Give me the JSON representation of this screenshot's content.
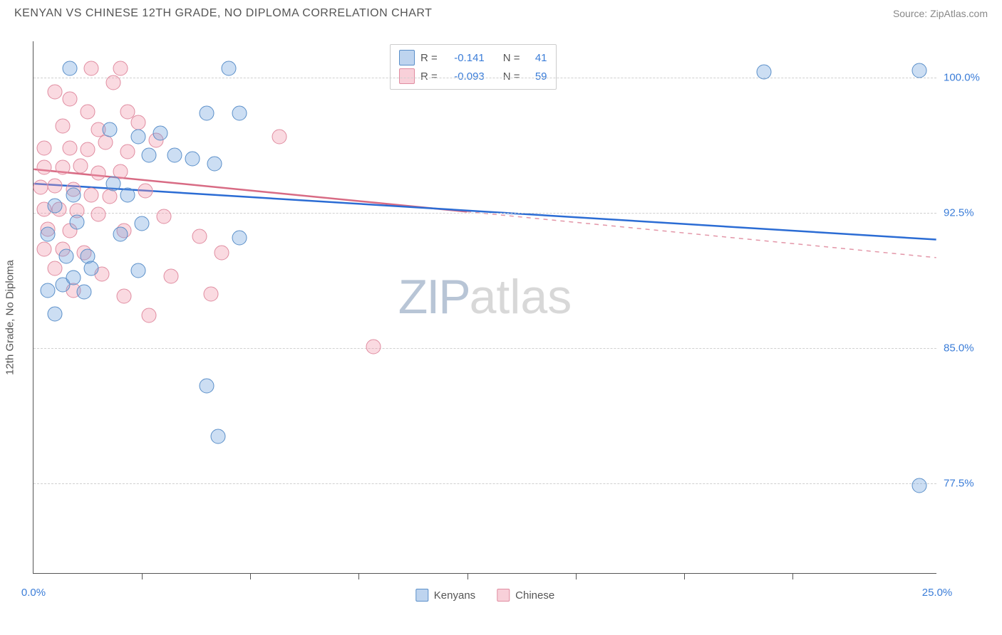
{
  "title": "KENYAN VS CHINESE 12TH GRADE, NO DIPLOMA CORRELATION CHART",
  "source": "Source: ZipAtlas.com",
  "ylabel": "12th Grade, No Diploma",
  "watermark": {
    "zip": "ZIP",
    "atlas": "atlas"
  },
  "chart": {
    "type": "scatter",
    "xlim": [
      0,
      25
    ],
    "ylim": [
      72.5,
      102.0
    ],
    "xtick_positions": [
      0,
      3,
      6,
      9,
      12,
      15,
      18,
      21,
      25
    ],
    "xtick_labels": {
      "0": "0.0%",
      "25": "25.0%"
    },
    "ytick_positions": [
      77.5,
      85.0,
      92.5,
      100.0
    ],
    "ytick_labels": [
      "77.5%",
      "85.0%",
      "92.5%",
      "100.0%"
    ],
    "gridline_color": "#d0d0d0",
    "axis_color": "#555555",
    "background_color": "#ffffff",
    "marker_size": 21
  },
  "series": {
    "kenyans": {
      "label": "Kenyans",
      "color_fill": "rgba(110,160,220,0.35)",
      "color_stroke": "#5a8fc9",
      "trend_color": "#2b6cd4",
      "trend_dash": "none",
      "R": "-0.141",
      "N": "41",
      "trend": {
        "x1": 0,
        "y1": 94.1,
        "x2": 25,
        "y2": 91.0
      },
      "points": [
        [
          1.0,
          100.5
        ],
        [
          5.4,
          100.5
        ],
        [
          20.2,
          100.3
        ],
        [
          24.5,
          100.4
        ],
        [
          4.8,
          98.0
        ],
        [
          5.7,
          98.0
        ],
        [
          2.1,
          97.1
        ],
        [
          2.9,
          96.7
        ],
        [
          3.5,
          96.9
        ],
        [
          3.2,
          95.7
        ],
        [
          3.9,
          95.7
        ],
        [
          4.4,
          95.5
        ],
        [
          5.0,
          95.2
        ],
        [
          2.2,
          94.1
        ],
        [
          2.6,
          93.5
        ],
        [
          1.1,
          93.5
        ],
        [
          0.6,
          92.9
        ],
        [
          1.2,
          92.0
        ],
        [
          0.4,
          91.3
        ],
        [
          2.4,
          91.3
        ],
        [
          3.0,
          91.9
        ],
        [
          5.7,
          91.1
        ],
        [
          0.9,
          90.1
        ],
        [
          1.5,
          90.1
        ],
        [
          1.6,
          89.4
        ],
        [
          2.9,
          89.3
        ],
        [
          0.4,
          88.2
        ],
        [
          0.8,
          88.5
        ],
        [
          1.1,
          88.9
        ],
        [
          1.4,
          88.1
        ],
        [
          0.6,
          86.9
        ],
        [
          4.8,
          82.9
        ],
        [
          5.1,
          80.1
        ],
        [
          24.5,
          77.4
        ]
      ]
    },
    "chinese": {
      "label": "Chinese",
      "color_fill": "rgba(240,150,170,0.35)",
      "color_stroke": "#e08ca0",
      "trend_color": "#d86b84",
      "trend_dash_after": 12,
      "R": "-0.093",
      "N": "59",
      "trend": {
        "x1": 0,
        "y1": 94.9,
        "x2": 25,
        "y2": 90.0
      },
      "points": [
        [
          1.6,
          100.5
        ],
        [
          2.4,
          100.5
        ],
        [
          2.2,
          99.7
        ],
        [
          0.6,
          99.2
        ],
        [
          1.0,
          98.8
        ],
        [
          1.5,
          98.1
        ],
        [
          2.6,
          98.1
        ],
        [
          0.8,
          97.3
        ],
        [
          1.8,
          97.1
        ],
        [
          2.9,
          97.5
        ],
        [
          6.8,
          96.7
        ],
        [
          3.4,
          96.5
        ],
        [
          0.3,
          96.1
        ],
        [
          1.0,
          96.1
        ],
        [
          1.5,
          96.0
        ],
        [
          2.0,
          96.4
        ],
        [
          2.6,
          95.9
        ],
        [
          0.3,
          95.0
        ],
        [
          0.8,
          95.0
        ],
        [
          1.3,
          95.1
        ],
        [
          1.8,
          94.7
        ],
        [
          2.4,
          94.8
        ],
        [
          0.2,
          93.9
        ],
        [
          0.6,
          94.0
        ],
        [
          1.1,
          93.8
        ],
        [
          1.6,
          93.5
        ],
        [
          2.1,
          93.4
        ],
        [
          3.1,
          93.7
        ],
        [
          0.3,
          92.7
        ],
        [
          0.7,
          92.7
        ],
        [
          1.2,
          92.6
        ],
        [
          1.8,
          92.4
        ],
        [
          3.6,
          92.3
        ],
        [
          0.4,
          91.6
        ],
        [
          1.0,
          91.5
        ],
        [
          2.5,
          91.5
        ],
        [
          4.6,
          91.2
        ],
        [
          0.3,
          90.5
        ],
        [
          0.8,
          90.5
        ],
        [
          1.4,
          90.3
        ],
        [
          5.2,
          90.3
        ],
        [
          0.6,
          89.4
        ],
        [
          1.9,
          89.1
        ],
        [
          3.8,
          89.0
        ],
        [
          1.1,
          88.2
        ],
        [
          2.5,
          87.9
        ],
        [
          4.9,
          88.0
        ],
        [
          3.2,
          86.8
        ],
        [
          9.4,
          85.1
        ]
      ]
    }
  },
  "legend_top": [
    {
      "swatch": "blue",
      "R_label": "R =",
      "R": "-0.141",
      "N_label": "N =",
      "N": "41"
    },
    {
      "swatch": "pink",
      "R_label": "R =",
      "R": "-0.093",
      "N_label": "N =",
      "N": "59"
    }
  ],
  "legend_bottom": [
    {
      "swatch": "blue",
      "label": "Kenyans"
    },
    {
      "swatch": "pink",
      "label": "Chinese"
    }
  ]
}
